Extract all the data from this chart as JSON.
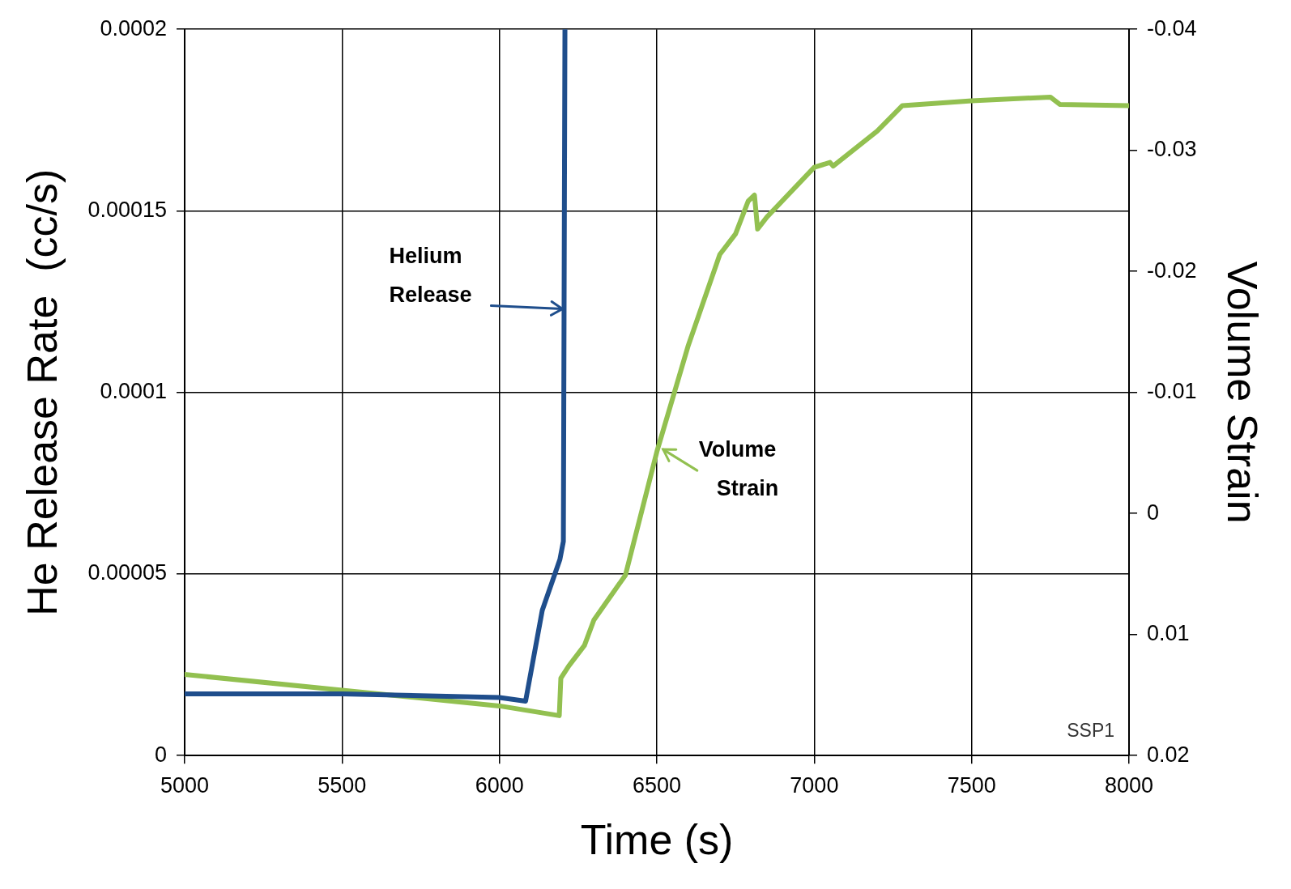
{
  "chart_data": {
    "type": "line",
    "xlabel": "Time (s)",
    "ylabel": "He Release Rate  (cc/s)",
    "y2label": "Volume Strain",
    "xlim": [
      5000,
      8000
    ],
    "xticks": [
      5000,
      5500,
      6000,
      6500,
      7000,
      7500,
      8000
    ],
    "ylim": [
      0,
      0.0002
    ],
    "yticks": [
      0,
      {
        "value": 5e-05,
        "label": "0.00005"
      },
      0.0001,
      0.00015,
      0.0002
    ],
    "y2lim": [
      0.02,
      -0.04
    ],
    "y2ticks": [
      -0.04,
      -0.03,
      -0.02,
      -0.01,
      0,
      0.01,
      0.02
    ],
    "grid": true,
    "legend": false,
    "marker": "none",
    "line_style": "solid",
    "series": [
      {
        "color": "#1f4e8c",
        "x": [
          5000,
          5500,
          6000,
          6083,
          6136,
          6192,
          6203,
          6208
        ],
        "values": [
          1.7e-05,
          1.7e-05,
          1.6e-05,
          1.5e-05,
          4e-05,
          5.4e-05,
          5.9e-05,
          0.0002
        ]
      },
      {
        "color": "#92c050",
        "axis": "y2",
        "x": [
          5000,
          5500,
          6000,
          6190,
          6195,
          6220,
          6270,
          6300,
          6400,
          6500,
          6600,
          6700,
          6750,
          6790,
          6810,
          6820,
          6850,
          7000,
          7050,
          7060,
          7200,
          7280,
          7500,
          7750,
          7780,
          8000
        ],
        "values": [
          0.0133,
          0.0146,
          0.0159,
          0.0167,
          0.0136,
          0.0126,
          0.0109,
          0.0088,
          0.0051,
          -0.0051,
          -0.0139,
          -0.0214,
          -0.0231,
          -0.0258,
          -0.0263,
          -0.0235,
          -0.0245,
          -0.0286,
          -0.029,
          -0.0287,
          -0.0316,
          -0.0337,
          -0.0341,
          -0.0344,
          -0.0338,
          -0.0337
        ]
      }
    ],
    "annotations": [
      {
        "text": "Helium Release",
        "x": 6200,
        "y": 0.000123
      },
      {
        "text": "Volume Strain",
        "x": 6520,
        "y": 8.43e-05
      },
      "SSP1"
    ]
  }
}
